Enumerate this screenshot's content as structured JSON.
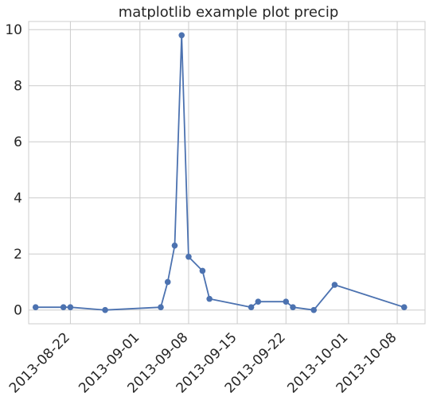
{
  "chart_data": {
    "type": "line",
    "title": "matplotlib example plot precip",
    "xlabel": "",
    "ylabel": "",
    "x_kind": "date",
    "xlim": [
      "2013-08-16",
      "2013-10-12"
    ],
    "ylim": [
      -0.49,
      10.29
    ],
    "grid": true,
    "x_ticks": [
      "2013-08-22",
      "2013-09-01",
      "2013-09-08",
      "2013-09-15",
      "2013-09-22",
      "2013-10-01",
      "2013-10-08"
    ],
    "y_ticks": [
      0,
      2,
      4,
      6,
      8,
      10
    ],
    "series": [
      {
        "color": "#4c72b0",
        "marker": "circle",
        "points": [
          {
            "x": "2013-08-17",
            "y": 0.1
          },
          {
            "x": "2013-08-21",
            "y": 0.1
          },
          {
            "x": "2013-08-22",
            "y": 0.1
          },
          {
            "x": "2013-08-27",
            "y": 0.0
          },
          {
            "x": "2013-09-04",
            "y": 0.1
          },
          {
            "x": "2013-09-05",
            "y": 1.0
          },
          {
            "x": "2013-09-06",
            "y": 2.3
          },
          {
            "x": "2013-09-07",
            "y": 9.8
          },
          {
            "x": "2013-09-08",
            "y": 1.9
          },
          {
            "x": "2013-09-10",
            "y": 1.4
          },
          {
            "x": "2013-09-11",
            "y": 0.4
          },
          {
            "x": "2013-09-17",
            "y": 0.1
          },
          {
            "x": "2013-09-18",
            "y": 0.3
          },
          {
            "x": "2013-09-22",
            "y": 0.3
          },
          {
            "x": "2013-09-23",
            "y": 0.1
          },
          {
            "x": "2013-09-26",
            "y": 0.0
          },
          {
            "x": "2013-09-29",
            "y": 0.9
          },
          {
            "x": "2013-10-09",
            "y": 0.1
          }
        ]
      }
    ]
  }
}
